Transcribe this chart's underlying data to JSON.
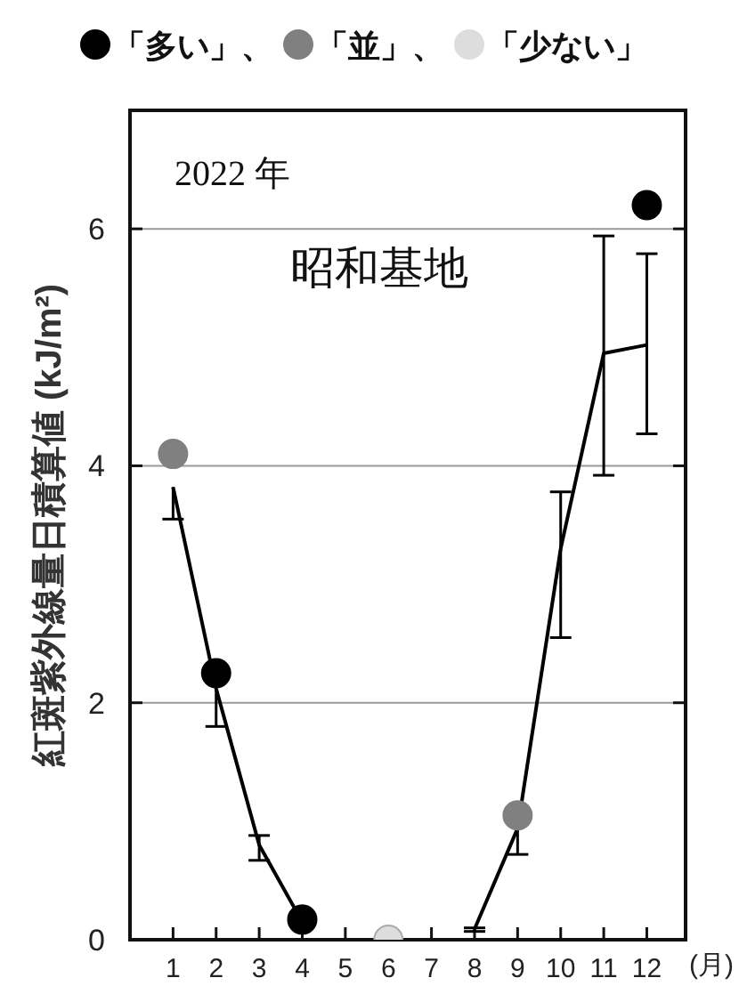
{
  "chart_data": {
    "type": "line",
    "ylabel": "紅斑紫外線量日積算値 (kJ/m²)",
    "xlabel": "(月)",
    "annotations": [
      "2022 年",
      "昭和基地"
    ],
    "xlim": [
      0,
      12.9
    ],
    "xticks": [
      1,
      2,
      3,
      4,
      5,
      6,
      7,
      8,
      9,
      10,
      11,
      12
    ],
    "ylim": [
      0,
      7
    ],
    "yticks": [
      0,
      2,
      4,
      6
    ],
    "grid": "y",
    "legend": "top",
    "series": [
      {
        "color": "#000000",
        "marker": "none",
        "x": [
          1,
          2,
          3,
          4
        ],
        "values": [
          3.82,
          2.12,
          0.8,
          0.15
        ],
        "errors": [
          [
            3.55,
            3.82
          ],
          [
            1.8,
            2.12
          ],
          [
            0.67,
            0.88
          ],
          null
        ]
      },
      {
        "color": "#000000",
        "marker": "none",
        "x": [
          8,
          9,
          10,
          11,
          12
        ],
        "values": [
          0.09,
          0.94,
          3.3,
          4.95,
          5.02
        ],
        "errors": [
          [
            0.07,
            0.1
          ],
          [
            0.72,
            0.94
          ],
          [
            2.55,
            3.78
          ],
          [
            3.92,
            5.94
          ],
          [
            4.27,
            5.79
          ]
        ]
      },
      {
        "type": "scatter",
        "name": "「多い」、",
        "color": "#000000",
        "marker": "circle",
        "x": [
          2,
          4,
          12
        ],
        "values": [
          2.25,
          0.17,
          6.2
        ]
      },
      {
        "type": "scatter",
        "name": "「並」、",
        "color": "#808080",
        "marker": "circle",
        "x": [
          1,
          9
        ],
        "values": [
          4.1,
          1.05
        ]
      },
      {
        "type": "scatter",
        "name": "「少ない」",
        "color": "#dddddd",
        "marker": "circle",
        "x": [
          6
        ],
        "values": [
          0
        ]
      }
    ]
  }
}
